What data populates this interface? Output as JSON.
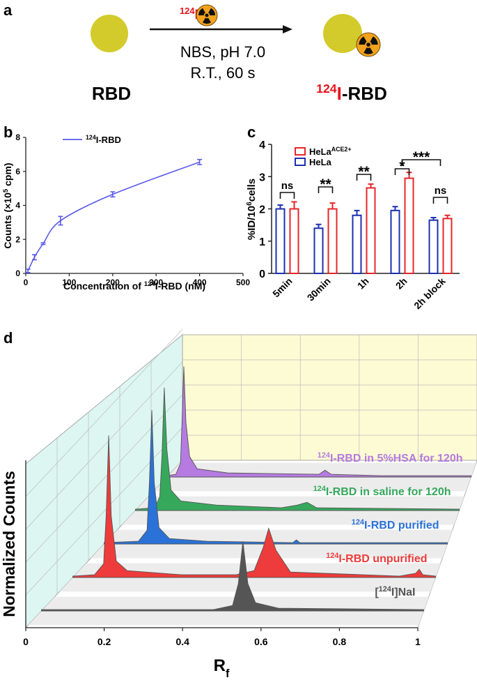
{
  "panels": [
    "a",
    "b",
    "c",
    "d"
  ],
  "scheme": {
    "reagent": [
      {
        "sup": "124"
      },
      "I"
    ],
    "conditions": [
      "NBS, pH 7.0",
      "R.T., 60 s"
    ],
    "reactant": "RBD",
    "product": [
      {
        "sup": "124"
      },
      "I",
      "-RBD"
    ]
  },
  "chart_data": [
    {
      "type": "line",
      "x": [
        5,
        20,
        40,
        80,
        200,
        400
      ],
      "series": [
        {
          "name": [
            {
              "sup": "124"
            },
            "I-RBD"
          ],
          "color": "#5a5ae8",
          "values": [
            0.15,
            0.95,
            1.75,
            3.1,
            4.65,
            6.55
          ],
          "errors": [
            0.1,
            0.15,
            0.05,
            0.25,
            0.15,
            0.15
          ]
        }
      ],
      "xlabel": [
        "Concentration of ",
        {
          "sup": "124"
        },
        "I-RBD (nM)"
      ],
      "ylabel": [
        "Counts (×10",
        {
          "sup": "5"
        },
        " cpm)"
      ],
      "xlim": [
        0,
        500
      ],
      "xticks": [
        0,
        100,
        200,
        300,
        400,
        500
      ],
      "ylim": [
        0,
        8
      ],
      "yticks": [
        0,
        2,
        4,
        6,
        8
      ],
      "legend": "upper left"
    },
    {
      "type": "bar",
      "categories": [
        "5min",
        "30min",
        "1h",
        "2h",
        "2h block"
      ],
      "series": [
        {
          "name": [
            "HeLa",
            {
              "sup": "ACE2+"
            }
          ],
          "color": "#e8262a",
          "values": [
            2.0,
            2.0,
            2.65,
            2.95,
            1.7
          ],
          "errors": [
            0.22,
            0.18,
            0.12,
            0.18,
            0.1
          ]
        },
        {
          "name": "HeLa",
          "color": "#1d2fb0",
          "values": [
            2.0,
            1.4,
            1.8,
            1.95,
            1.65
          ],
          "errors": [
            0.12,
            0.12,
            0.15,
            0.12,
            0.08
          ]
        }
      ],
      "ylabel": [
        "%ID/10",
        {
          "sup": "6"
        },
        "cells"
      ],
      "ylim": [
        0,
        4
      ],
      "yticks": [
        0,
        1,
        2,
        3,
        4
      ],
      "annotations": [
        "ns",
        "**",
        "**",
        "*",
        "***",
        "ns"
      ],
      "legend": "upper left"
    },
    {
      "type": "waterfall",
      "series": [
        {
          "name": [
            {
              "sup": "124"
            },
            "I-RBD in 5%HSA for 120h"
          ],
          "color": "#b57be0",
          "x": [
            0,
            0.03,
            0.045,
            0.05,
            0.056,
            0.063,
            0.075,
            0.1,
            0.2,
            0.5,
            0.52,
            0.54,
            0.7,
            1
          ],
          "values": [
            0.01,
            0.02,
            0.1,
            0.4,
            0.81,
            0.4,
            0.15,
            0.06,
            0.03,
            0.02,
            0.05,
            0.02,
            0.01,
            0.01
          ]
        },
        {
          "name": [
            {
              "sup": "124"
            },
            "I-RBD in saline for 120h"
          ],
          "color": "#36a85c",
          "x": [
            0,
            0.06,
            0.075,
            0.082,
            0.089,
            0.097,
            0.11,
            0.14,
            0.25,
            0.45,
            0.5,
            0.53,
            0.56,
            1
          ],
          "values": [
            0.01,
            0.02,
            0.1,
            0.4,
            0.9,
            0.45,
            0.15,
            0.07,
            0.04,
            0.02,
            0.04,
            0.06,
            0.02,
            0.01
          ]
        },
        {
          "name": [
            {
              "sup": "124"
            },
            "I-RBD purified"
          ],
          "color": "#2a72d8",
          "x": [
            0,
            0.1,
            0.125,
            0.132,
            0.139,
            0.146,
            0.16,
            0.19,
            0.3,
            0.55,
            0.56,
            0.57,
            1
          ],
          "values": [
            0.01,
            0.02,
            0.1,
            0.45,
            0.98,
            0.45,
            0.12,
            0.04,
            0.02,
            0.01,
            0.03,
            0.01,
            0.01
          ]
        },
        {
          "name": [
            {
              "sup": "124"
            },
            "I-RBD unpurified"
          ],
          "color": "#ee3b3b",
          "x": [
            0,
            0.06,
            0.085,
            0.092,
            0.099,
            0.106,
            0.12,
            0.15,
            0.3,
            0.45,
            0.5,
            0.525,
            0.54,
            0.56,
            0.6,
            0.9,
            0.945,
            0.955,
            0.965,
            1
          ],
          "values": [
            0.01,
            0.02,
            0.1,
            0.45,
            1.04,
            0.45,
            0.12,
            0.05,
            0.02,
            0.02,
            0.05,
            0.22,
            0.36,
            0.2,
            0.04,
            0.01,
            0.03,
            0.06,
            0.02,
            0.01
          ]
        },
        {
          "name": [
            "[",
            {
              "sup": "124"
            },
            "I]NaI"
          ],
          "color": "#555555",
          "x": [
            0,
            0.45,
            0.5,
            0.515,
            0.527,
            0.54,
            0.56,
            0.62,
            1
          ],
          "values": [
            0.01,
            0.01,
            0.04,
            0.2,
            0.51,
            0.2,
            0.06,
            0.02,
            0.01
          ]
        }
      ],
      "xlabel": [
        "R",
        {
          "sub": "f"
        }
      ],
      "ylabel": "Normalized Counts",
      "xlim": [
        0,
        1
      ],
      "xticks": [
        0,
        0.2,
        0.4,
        0.6,
        0.8,
        1
      ],
      "ylim": [
        0,
        1.2
      ]
    }
  ]
}
